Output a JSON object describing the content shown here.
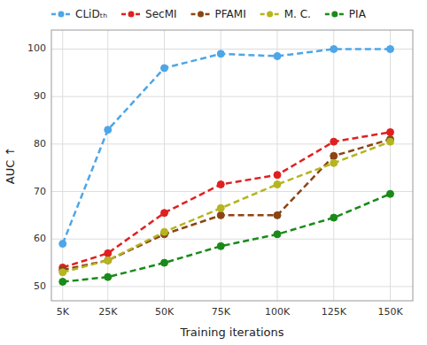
{
  "chart_data": {
    "type": "line",
    "xlabel": "Training iterations",
    "ylabel": "AUC ↑",
    "x": [
      5000,
      25000,
      50000,
      75000,
      100000,
      125000,
      150000
    ],
    "xlim": [
      0,
      160000
    ],
    "xticks": [
      {
        "value": 5000,
        "label": "5K"
      },
      {
        "value": 25000,
        "label": "25K"
      },
      {
        "value": 50000,
        "label": "50K"
      },
      {
        "value": 75000,
        "label": "75K"
      },
      {
        "value": 100000,
        "label": "100K"
      },
      {
        "value": 125000,
        "label": "125K"
      },
      {
        "value": 150000,
        "label": "150K"
      }
    ],
    "ylim": [
      47,
      104
    ],
    "yticks": [
      50,
      60,
      70,
      80,
      90,
      100
    ],
    "grid": true,
    "legend": "upper left",
    "marker": "circle",
    "line_style": "dashed",
    "series": [
      {
        "name": "CLiDₜₕ",
        "color": "#4da6e8",
        "values": [
          59,
          83,
          96,
          99,
          98.5,
          100,
          100
        ]
      },
      {
        "name": "SecMI",
        "color": "#e02020",
        "values": [
          54,
          57,
          65.5,
          71.5,
          73.5,
          80.5,
          82.5
        ]
      },
      {
        "name": "PFAMI",
        "color": "#8B4513",
        "values": [
          53.5,
          55.5,
          61,
          65,
          65,
          77.5,
          81
        ]
      },
      {
        "name": "M. C.",
        "color": "#b5b520",
        "values": [
          53,
          55.5,
          61.5,
          66.5,
          71.5,
          76,
          80.5
        ]
      },
      {
        "name": "PIA",
        "color": "#1a8a1a",
        "values": [
          51,
          52,
          55,
          58.5,
          61,
          64.5,
          69.5
        ]
      }
    ]
  }
}
